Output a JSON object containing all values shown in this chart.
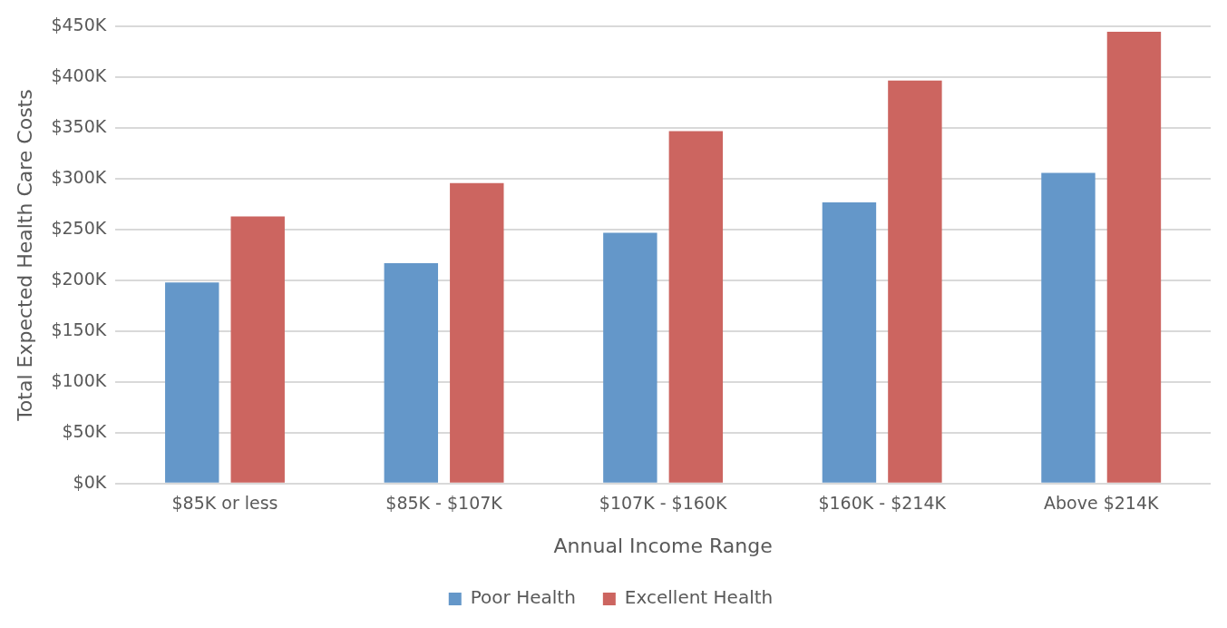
{
  "chart_data": {
    "type": "bar",
    "xlabel": "Annual Income Range",
    "ylabel": "Total Expected Health Care Costs",
    "categories": [
      "$85K or less",
      "$85K - $107K",
      "$107K - $160K",
      "$160K - $214K",
      "Above $214K"
    ],
    "series": [
      {
        "name": "Poor Health",
        "color": "#6497c9",
        "values": [
          198,
          217,
          247,
          277,
          306
        ]
      },
      {
        "name": "Excellent Health",
        "color": "#cc6560",
        "values": [
          263,
          296,
          347,
          397,
          445
        ]
      }
    ],
    "ylim": [
      0,
      450
    ],
    "yticks": [
      {
        "value": 0,
        "label": "$0K"
      },
      {
        "value": 50,
        "label": "$50K"
      },
      {
        "value": 100,
        "label": "$100K"
      },
      {
        "value": 150,
        "label": "$150K"
      },
      {
        "value": 200,
        "label": "$200K"
      },
      {
        "value": 250,
        "label": "$250K"
      },
      {
        "value": 300,
        "label": "$300K"
      },
      {
        "value": 350,
        "label": "$350K"
      },
      {
        "value": 400,
        "label": "$400K"
      },
      {
        "value": 450,
        "label": "$450K"
      }
    ],
    "grid": "y",
    "legend": "bottom"
  }
}
